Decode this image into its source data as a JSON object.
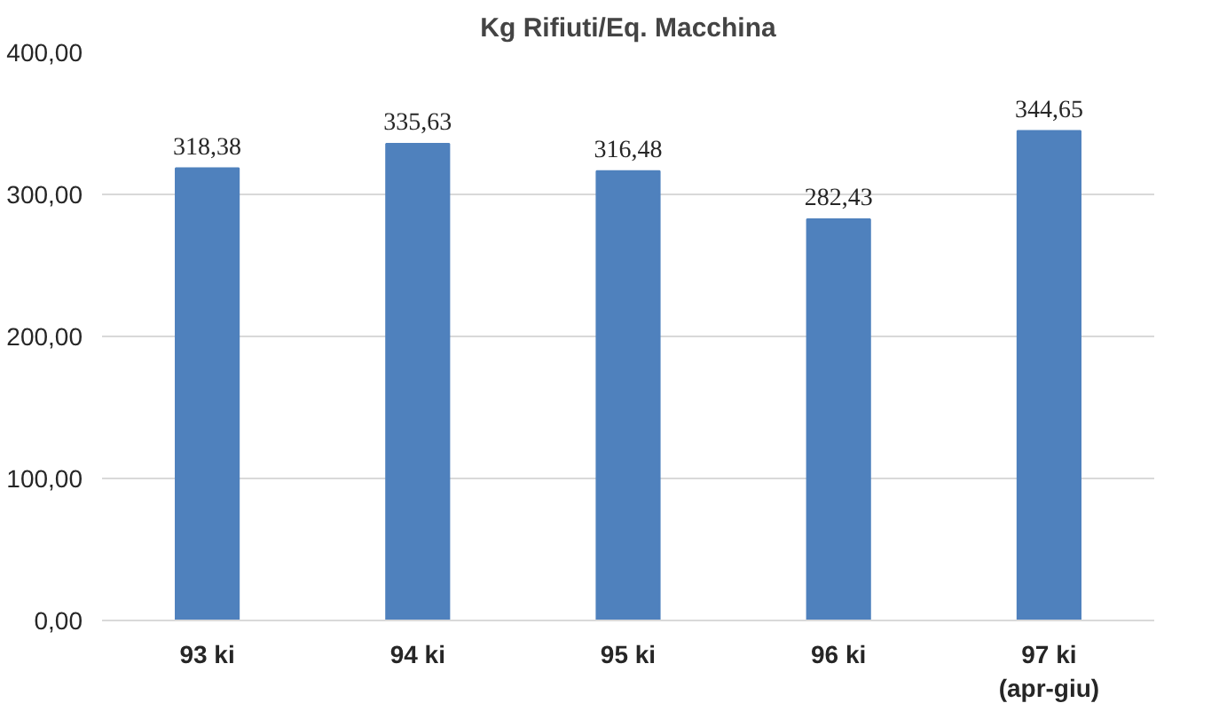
{
  "chart_data": {
    "type": "bar",
    "title": "Kg Rifiuti/Eq. Macchina",
    "categories": [
      "93 ki",
      "94 ki",
      "95 ki",
      "96 ki",
      "97 ki\n(apr-giu)"
    ],
    "values": [
      318.38,
      335.63,
      316.48,
      282.43,
      344.65
    ],
    "value_labels": [
      "318,38",
      "335,63",
      "316,48",
      "282,43",
      "344,65"
    ],
    "color": "#4f81bd",
    "ylim": [
      0,
      400
    ],
    "yticks": [
      {
        "value": 0,
        "label": "0,00"
      },
      {
        "value": 100,
        "label": "100,00"
      },
      {
        "value": 200,
        "label": "200,00"
      },
      {
        "value": 300,
        "label": "300,00"
      },
      {
        "value": 400,
        "label": "400,00"
      }
    ],
    "grid": "y"
  }
}
